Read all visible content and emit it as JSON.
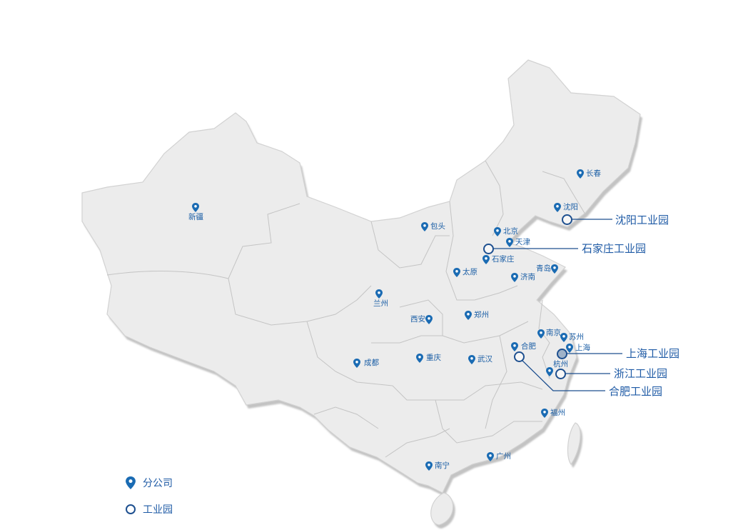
{
  "colors": {
    "land": "#ececec",
    "border": "#c9c9c9",
    "shadow": "#c8c8c8",
    "pin": "#1a6bb3",
    "park_line": "#1d4f8f",
    "label": "#1c5fa6"
  },
  "branches": [
    "新疆",
    "长春",
    "沈阳",
    "包头",
    "北京",
    "天津",
    "石家庄",
    "太原",
    "青岛",
    "济南",
    "兰州",
    "西安",
    "郑州",
    "南京",
    "苏州",
    "上海",
    "合肥",
    "杭州",
    "成都",
    "重庆",
    "武汉",
    "福州",
    "广州",
    "南宁"
  ],
  "parks": [
    "沈阳工业园",
    "石家庄工业园",
    "上海工业园",
    "浙江工业园",
    "合肥工业园"
  ],
  "legend": {
    "branch_label": "分公司",
    "branch_icon": "map-pin-icon",
    "park_label": "工业园",
    "park_icon": "circle-icon"
  }
}
